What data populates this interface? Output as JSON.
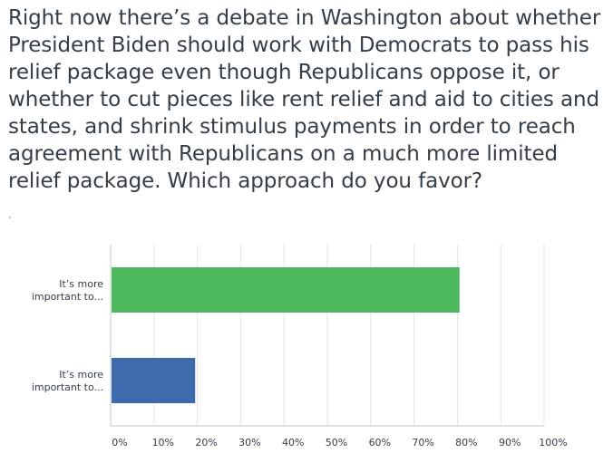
{
  "question": "Right now there’s a debate in Washington about whether President Biden should work with Democrats to pass his relief package even though Republicans oppose it, or whether to cut pieces like rent relief and aid to cities and states, and shrink stimulus payments in order to reach agreement with Republicans on a much more limited relief package. Which approach do you favor?",
  "chart_data": {
    "type": "bar",
    "orientation": "horizontal",
    "categories": [
      [
        "It’s more",
        "important to..."
      ],
      [
        "It’s more",
        "important to..."
      ]
    ],
    "values": [
      80.5,
      19.5
    ],
    "colors": [
      "#4cba5c",
      "#3e6aae"
    ],
    "xlim": [
      0,
      100
    ],
    "xticks": [
      "0%",
      "10%",
      "20%",
      "30%",
      "40%",
      "50%",
      "60%",
      "70%",
      "80%",
      "90%",
      "100%"
    ],
    "grid": true,
    "legend": "none"
  }
}
